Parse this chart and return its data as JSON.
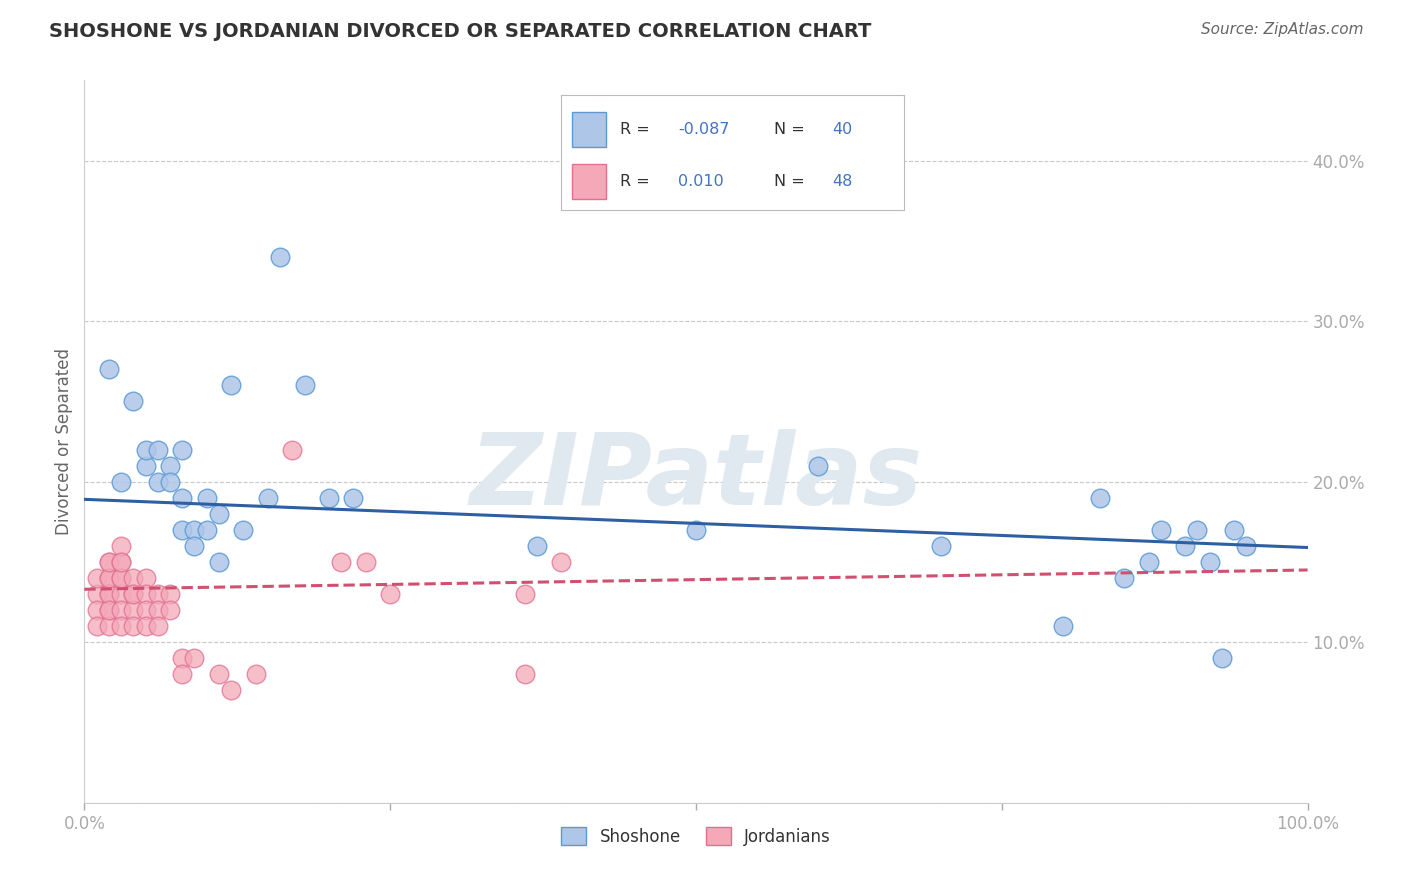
{
  "title": "SHOSHONE VS JORDANIAN DIVORCED OR SEPARATED CORRELATION CHART",
  "source": "Source: ZipAtlas.com",
  "ylabel": "Divorced or Separated",
  "xlim": [
    0.0,
    1.0
  ],
  "ylim": [
    0.0,
    0.45
  ],
  "xtick_positions": [
    0.0,
    0.25,
    0.5,
    0.75,
    1.0
  ],
  "xtick_labels": [
    "0.0%",
    "",
    "",
    "",
    "100.0%"
  ],
  "ytick_positions": [
    0.0,
    0.1,
    0.2,
    0.3,
    0.4
  ],
  "ytick_labels": [
    "",
    "10.0%",
    "20.0%",
    "30.0%",
    "40.0%"
  ],
  "grid_color": "#c8c8c8",
  "background_color": "#ffffff",
  "shoshone_color": "#aec6e8",
  "jordanian_color": "#f4a8b8",
  "shoshone_edge_color": "#5b9bd5",
  "jordanian_edge_color": "#e07090",
  "shoshone_line_color": "#2e5fa3",
  "jordanian_line_color": "#d05070",
  "shoshone_R": -0.087,
  "shoshone_N": 40,
  "jordanian_R": 0.01,
  "jordanian_N": 48,
  "watermark_text": "ZIPatlas",
  "shoshone_points_x": [
    0.02,
    0.03,
    0.04,
    0.05,
    0.05,
    0.06,
    0.06,
    0.07,
    0.07,
    0.08,
    0.08,
    0.08,
    0.09,
    0.09,
    0.1,
    0.1,
    0.11,
    0.11,
    0.12,
    0.13,
    0.15,
    0.16,
    0.18,
    0.2,
    0.22,
    0.37,
    0.5,
    0.6,
    0.7,
    0.8,
    0.83,
    0.85,
    0.87,
    0.88,
    0.9,
    0.91,
    0.92,
    0.93,
    0.94,
    0.95
  ],
  "shoshone_points_y": [
    0.27,
    0.2,
    0.25,
    0.21,
    0.22,
    0.2,
    0.22,
    0.21,
    0.2,
    0.22,
    0.19,
    0.17,
    0.17,
    0.16,
    0.19,
    0.17,
    0.18,
    0.15,
    0.26,
    0.17,
    0.19,
    0.34,
    0.26,
    0.19,
    0.19,
    0.16,
    0.17,
    0.21,
    0.16,
    0.11,
    0.19,
    0.14,
    0.15,
    0.17,
    0.16,
    0.17,
    0.15,
    0.09,
    0.17,
    0.16
  ],
  "jordanian_points_x": [
    0.01,
    0.01,
    0.01,
    0.01,
    0.02,
    0.02,
    0.02,
    0.02,
    0.02,
    0.02,
    0.02,
    0.02,
    0.02,
    0.03,
    0.03,
    0.03,
    0.03,
    0.03,
    0.03,
    0.03,
    0.03,
    0.04,
    0.04,
    0.04,
    0.04,
    0.04,
    0.05,
    0.05,
    0.05,
    0.05,
    0.06,
    0.06,
    0.06,
    0.07,
    0.07,
    0.08,
    0.08,
    0.09,
    0.11,
    0.12,
    0.14,
    0.17,
    0.21,
    0.23,
    0.25,
    0.36,
    0.36,
    0.39
  ],
  "jordanian_points_y": [
    0.13,
    0.14,
    0.12,
    0.11,
    0.14,
    0.15,
    0.13,
    0.12,
    0.11,
    0.13,
    0.14,
    0.15,
    0.12,
    0.14,
    0.15,
    0.16,
    0.13,
    0.12,
    0.11,
    0.14,
    0.15,
    0.13,
    0.14,
    0.12,
    0.11,
    0.13,
    0.14,
    0.13,
    0.12,
    0.11,
    0.13,
    0.12,
    0.11,
    0.13,
    0.12,
    0.09,
    0.08,
    0.09,
    0.08,
    0.07,
    0.08,
    0.22,
    0.15,
    0.15,
    0.13,
    0.13,
    0.08,
    0.15
  ]
}
